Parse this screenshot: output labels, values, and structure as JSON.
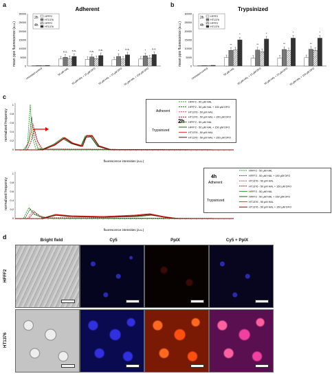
{
  "panels": {
    "a": "a",
    "b": "b",
    "c": "c",
    "d": "d"
  },
  "panel_a": {
    "title": "Adherent",
    "ylabel": "mean ppix fluorescence (a.u.)",
    "yticks": [
      "0",
      "5000",
      "10000",
      "15000",
      "20000",
      "25000",
      "30000"
    ],
    "legend": {
      "time1": "2h",
      "time2": "4h",
      "items": [
        "HFFF2",
        "HT1376",
        "HFFF2",
        "HT1376"
      ]
    },
    "categories": [
      "Untreated control",
      "50 µM HAL",
      "50 µM HAL + 15 µM DFO",
      "50 µM HAL + 15 µM DFO",
      "50 µM HAL + 150 µM DFO"
    ],
    "sig": [
      "n.s.",
      "n.s.",
      "n.s.",
      "n.s.",
      "*",
      "n.s.",
      "*",
      "n.s."
    ]
  },
  "panel_b": {
    "title": "Trypsinized",
    "ylabel": "mean ppix fluorescence (a.u.)",
    "yticks": [
      "0",
      "5000",
      "10000",
      "15000",
      "20000",
      "25000",
      "30000"
    ],
    "legend": {
      "time1": "2h",
      "time2": "4h",
      "items": [
        "HFFF2",
        "HT1376",
        "HFFF2",
        "HT1376"
      ]
    },
    "categories": [
      "Untreated control",
      "50 µM HAL",
      "50 µM HAL + 15 µM DFO",
      "50 µM HAL + 15 µM DFO",
      "50 µM HAL + 150 µM DFO"
    ],
    "sig": [
      "**",
      "*",
      "**",
      "*",
      "**",
      "*",
      "**",
      "*"
    ]
  },
  "panel_c": {
    "ylabel": "normalized frequency",
    "xlabel": "fluorescence intensities (a.u.)",
    "top_time": "2h",
    "bottom_time": "4h",
    "group1": "Adherent",
    "group2": "Trypsinized",
    "legend_items": [
      "HFFF2 - 50 µM HAL",
      "HFFF2 - 50 µM HAL + 150 µM DFO",
      "HT1376 - 50 µM HAL",
      "HT1376 - 50 µM HAL + 150 µM DFO",
      "HFFF2 - 50 µM HAL",
      "HFFF2 - 50 µM HAL + 150 µM DFO",
      "HT1376 - 50 µM HAL",
      "HT1376 - 50 µM HAL + 150 µM DFO"
    ],
    "yticks_top": [
      "0",
      "0.2",
      "0.4",
      "0.6",
      "0.8",
      "1"
    ],
    "yticks_bottom": [
      "0",
      "0.2",
      "0.4",
      "0.6",
      "0.8",
      "1"
    ]
  },
  "panel_d": {
    "columns": [
      "Bright field",
      "Cy5",
      "PpIX",
      "Cy5 + PpIX"
    ],
    "rows": [
      "HFFF2",
      "HT1376"
    ]
  },
  "chart_data": [
    {
      "type": "bar",
      "title": "Adherent",
      "ylabel": "mean ppix fluorescence (a.u.)",
      "ylim": [
        0,
        30000
      ],
      "categories": [
        "Untreated control",
        "50 µM HAL",
        "50 µM HAL + 15 µM DFO",
        "50 µM HAL + 15 µM DFO",
        "50 µM HAL + 150 µM DFO"
      ],
      "series": [
        {
          "name": "HFFF2",
          "values": [
            200,
            4000,
            3800,
            3600,
            4000
          ]
        },
        {
          "name": "HT1376",
          "values": [
            300,
            5000,
            5200,
            5500,
            5800
          ]
        },
        {
          "name": "HFFF2",
          "values": [
            250,
            4300,
            4200,
            4000,
            4600
          ]
        },
        {
          "name": "HT1376",
          "values": [
            350,
            5500,
            6000,
            6400,
            6600
          ]
        }
      ]
    },
    {
      "type": "bar",
      "title": "Trypsinized",
      "ylabel": "mean ppix fluorescence (a.u.)",
      "ylim": [
        0,
        30000
      ],
      "categories": [
        "Untreated control",
        "50 µM HAL",
        "50 µM HAL + 15 µM DFO",
        "50 µM HAL + 15 µM DFO",
        "50 µM HAL + 150 µM DFO"
      ],
      "series": [
        {
          "name": "HFFF2",
          "values": [
            200,
            4800,
            4500,
            4600,
            4800
          ]
        },
        {
          "name": "HT1376",
          "values": [
            300,
            9000,
            9200,
            9500,
            9600
          ]
        },
        {
          "name": "HFFF2",
          "values": [
            250,
            9200,
            8200,
            8800,
            9000
          ]
        },
        {
          "name": "HT1376",
          "values": [
            400,
            15000,
            15500,
            16000,
            16000
          ]
        }
      ]
    }
  ]
}
